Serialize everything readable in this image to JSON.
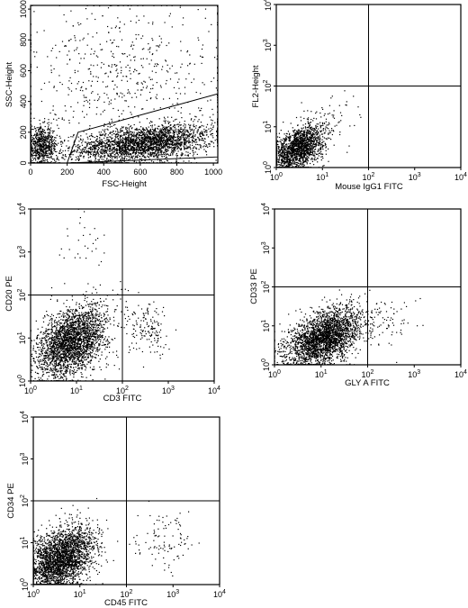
{
  "chart_data": [
    {
      "type": "scatter",
      "xlabel": "FSC-Height",
      "ylabel": "SSC-Height",
      "xscale": "linear",
      "yscale": "linear",
      "xlim": [
        0,
        1024
      ],
      "ylim": [
        0,
        1024
      ],
      "x_ticks": [
        "0",
        "200",
        "400",
        "600",
        "800",
        "1000"
      ],
      "y_ticks": [
        "0",
        "200",
        "400",
        "600",
        "800",
        "1000"
      ],
      "gate_polygon": [
        [
          260,
          200
        ],
        [
          1024,
          450
        ],
        [
          1024,
          40
        ],
        [
          200,
          0
        ]
      ],
      "populations": [
        {
          "x_mean": 620,
          "y_mean": 90,
          "x_sd": 190,
          "y_sd": 55,
          "n": 2600
        },
        {
          "x_mean": 60,
          "y_mean": 110,
          "x_sd": 45,
          "y_sd": 60,
          "n": 700
        },
        {
          "x_mean": 520,
          "y_mean": 520,
          "x_sd": 280,
          "y_sd": 280,
          "n": 650
        }
      ]
    },
    {
      "type": "scatter",
      "xlabel": "Mouse IgG1 FITC",
      "ylabel": "FL2-Height",
      "xscale": "log",
      "yscale": "log",
      "xlim": [
        1,
        10000
      ],
      "ylim": [
        1,
        10000
      ],
      "quadrant_gate": [
        100,
        100
      ],
      "populations": [
        {
          "x_mean": 3,
          "y_mean": 3,
          "x_sd_log": 0.28,
          "y_sd_log": 0.25,
          "n": 1700
        },
        {
          "x_mean": 15,
          "y_mean": 15,
          "x_sd_log": 0.35,
          "y_sd_log": 0.35,
          "n": 60
        }
      ]
    },
    {
      "type": "scatter",
      "xlabel": "CD3 FITC",
      "ylabel": "CD20 PE",
      "xscale": "log",
      "yscale": "log",
      "xlim": [
        1,
        10000
      ],
      "ylim": [
        1,
        10000
      ],
      "quadrant_gate": [
        100,
        100
      ],
      "populations": [
        {
          "x_mean": 8,
          "y_mean": 8,
          "x_sd_log": 0.38,
          "y_sd_log": 0.38,
          "n": 2600
        },
        {
          "x_mean": 400,
          "y_mean": 15,
          "x_sd_log": 0.25,
          "y_sd_log": 0.3,
          "n": 150
        },
        {
          "x_mean": 15,
          "y_mean": 1500,
          "x_sd_log": 0.3,
          "y_sd_log": 0.3,
          "n": 30
        }
      ]
    },
    {
      "type": "scatter",
      "xlabel": "GLY A FITC",
      "ylabel": "CD33 PE",
      "xscale": "log",
      "yscale": "log",
      "xlim": [
        1,
        10000
      ],
      "ylim": [
        1,
        10000
      ],
      "quadrant_gate": [
        100,
        100
      ],
      "populations": [
        {
          "x_mean": 12,
          "y_mean": 5,
          "x_sd_log": 0.4,
          "y_sd_log": 0.33,
          "n": 2700
        },
        {
          "x_mean": 300,
          "y_mean": 12,
          "x_sd_log": 0.3,
          "y_sd_log": 0.35,
          "n": 60
        }
      ]
    },
    {
      "type": "scatter",
      "xlabel": "CD45 FITC",
      "ylabel": "CD34 PE",
      "xscale": "log",
      "yscale": "log",
      "xlim": [
        1,
        10000
      ],
      "ylim": [
        1,
        10000
      ],
      "quadrant_gate": [
        100,
        100
      ],
      "populations": [
        {
          "x_mean": 4,
          "y_mean": 4,
          "x_sd_log": 0.36,
          "y_sd_log": 0.36,
          "n": 2700
        },
        {
          "x_mean": 600,
          "y_mean": 12,
          "x_sd_log": 0.3,
          "y_sd_log": 0.3,
          "n": 100
        }
      ]
    }
  ]
}
